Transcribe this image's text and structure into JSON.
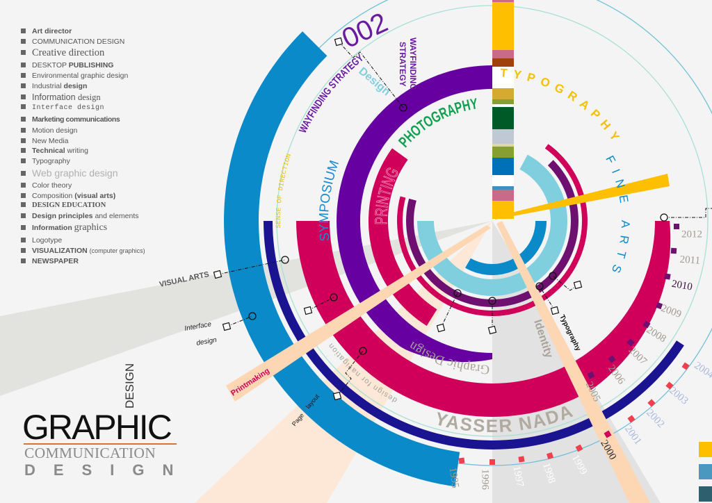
{
  "skills_list": {
    "items": [
      [
        "Art director"
      ],
      [
        "COMMUNICATION DESIGN"
      ],
      [
        "Creative direction"
      ],
      [
        "DESKTOP ",
        "PUBLISHING"
      ],
      [
        "Environmental graphic design"
      ],
      [
        "Industrial ",
        "design"
      ],
      [
        "Information ",
        "design"
      ],
      [
        "Interface design"
      ],
      [
        "Marketing communications"
      ],
      [
        "Motion design"
      ],
      [
        "New Media"
      ],
      [
        "Technical",
        " writing"
      ],
      [
        "Typography"
      ],
      [
        "Web graphic design"
      ],
      [
        "Color theory"
      ],
      [
        "Composition ",
        "(visual arts)"
      ],
      [
        "DESIGN EDUCATION"
      ],
      [
        "Design principles",
        " and elements"
      ],
      [
        "Information ",
        "graphics"
      ],
      [
        "Logotype"
      ],
      [
        "VISUALIZATION ",
        "(computer graphics)"
      ],
      [
        "NEWSPAPER"
      ]
    ]
  },
  "logo": {
    "main": "GRAPHIC",
    "vertical": "DESIGN",
    "line2": "COMMUNICATION",
    "line3": "DESIGN"
  },
  "labels": {
    "number": "002",
    "wayfinding_block": [
      "WAYFINDING",
      "STRATEGY"
    ],
    "design": "Design",
    "typography_arc": "TYPOGRAPHY",
    "fine_arts": "FINE ARTS",
    "photography": "PHOTOGRAPHY",
    "printing": "PRINTING",
    "symposium": "SYMPOSIUM",
    "wayfinding_arc": "WAYFINDING STRATEGY",
    "sense_of_direction": "SENSE OF DIRECTION",
    "graphic_design": "Graphic Design",
    "design_for_navigation": "design for navigation",
    "author": "YASSER NADA",
    "identity": "Identity",
    "typography_small": "Typography",
    "printmaking": "Printmaking",
    "visual_arts": "VISUAL ARTS",
    "interface_design": [
      "Interface",
      "design"
    ],
    "page_layout": [
      "Page",
      "layout"
    ]
  },
  "years": [
    "1995",
    "1996",
    "1997",
    "1998",
    "1999",
    "2000",
    "2001",
    "2002",
    "2003",
    "2004",
    "2005",
    "2006",
    "2007",
    "2008",
    "2009",
    "2010",
    "2011",
    "2012"
  ],
  "colors": {
    "blue": "#0a8ac8",
    "navy": "#1a1490",
    "magenta": "#d0005a",
    "purple": "#6600a0",
    "dark_purple": "#6e1070",
    "light_blue": "#80cfdf",
    "yellow": "#fdbf00",
    "green": "#12a050",
    "peach": "#fdd6b4",
    "grey_band": "#e2e2de",
    "legend": [
      "#fdbf00",
      "#4a98c0",
      "#2e5f6e"
    ]
  }
}
